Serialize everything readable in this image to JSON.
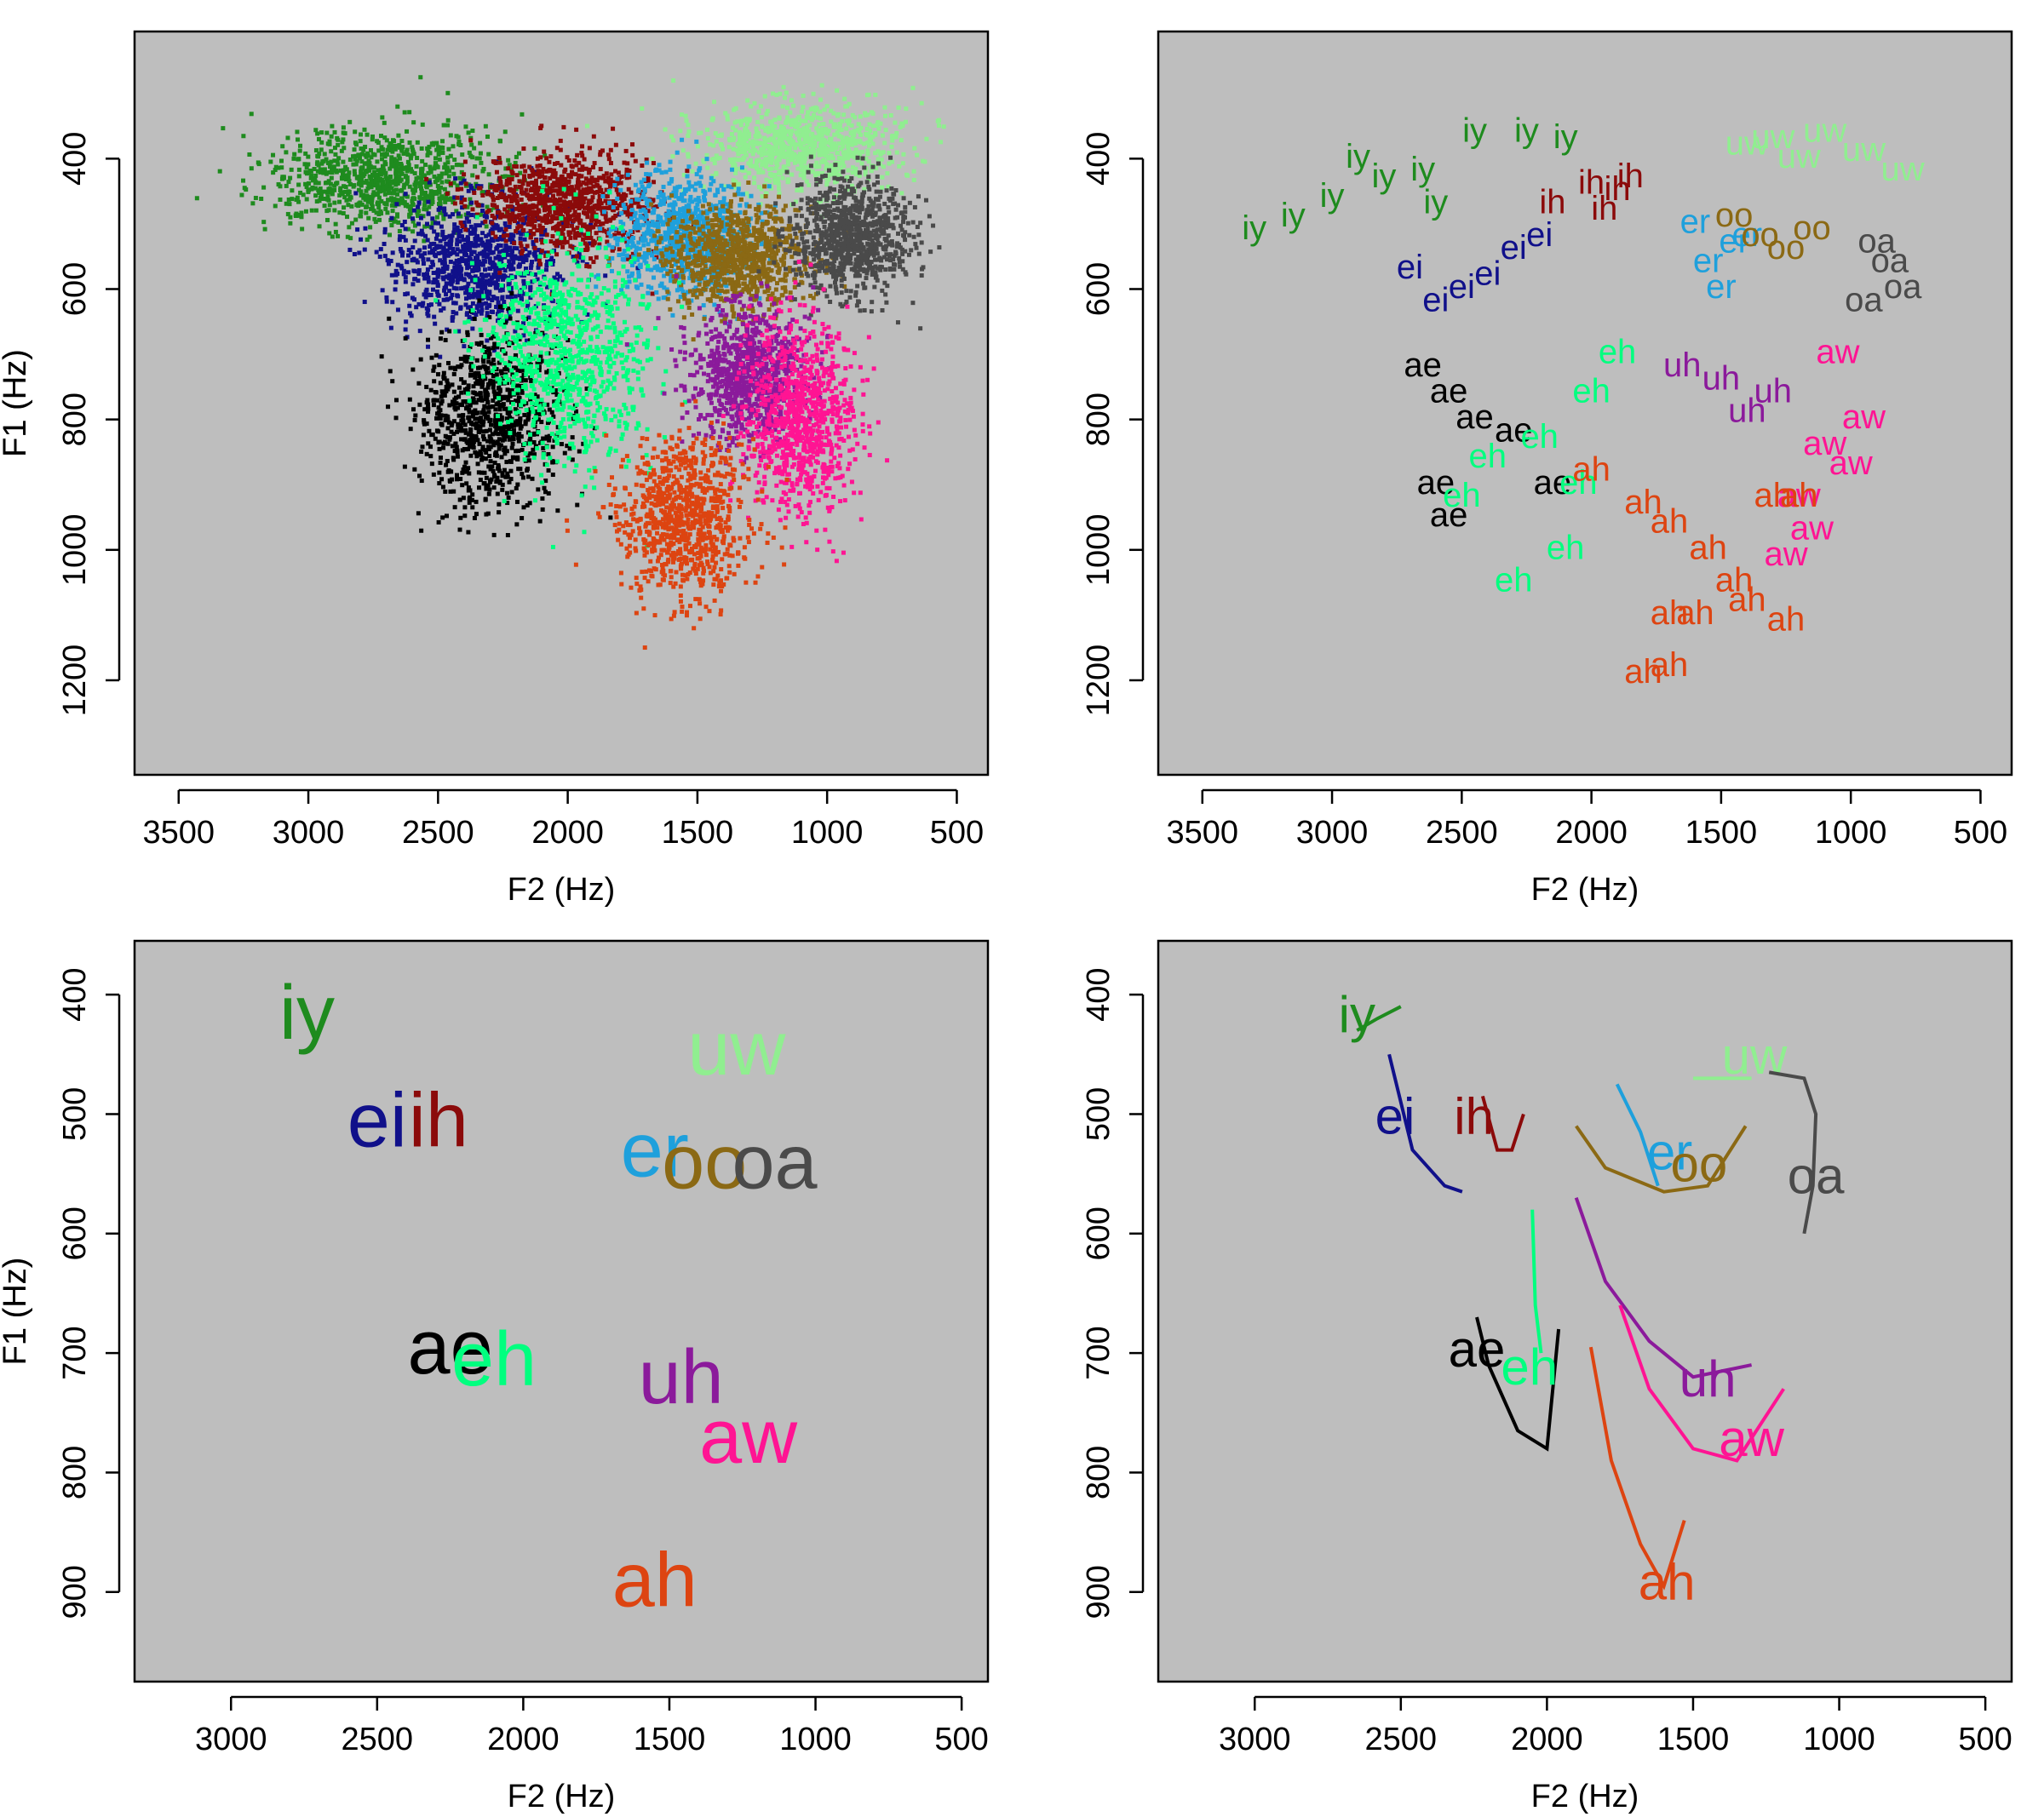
{
  "colors": {
    "iy": "#1e8b1e",
    "ei": "#10108a",
    "ih": "#8b0a0a",
    "uw": "#90ee90",
    "er": "#1ea0dc",
    "oo": "#8b6914",
    "oa": "#4a4a4a",
    "ae": "#000000",
    "eh": "#00ff7f",
    "uh": "#8b1a9b",
    "aw": "#ff1493",
    "ah": "#dd4411",
    "panel_bg": "#bebebe"
  },
  "chart_data": [
    {
      "type": "scatter",
      "xlabel": "F2 (Hz)",
      "ylabel": "F1 (Hz)",
      "x_reversed": true,
      "y_reversed": true,
      "xlim": [
        3670,
        380
      ],
      "ylim": [
        1345,
        205
      ],
      "xticks": [
        "3500",
        "3000",
        "2500",
        "2000",
        "1500",
        "1000",
        "500"
      ],
      "yticks": [
        "400",
        "600",
        "800",
        "1000",
        "1200"
      ],
      "series": [
        {
          "name": "iy",
          "center": [
            2700,
            430
          ],
          "spread": [
            420,
            70
          ]
        },
        {
          "name": "ei",
          "center": [
            2350,
            560
          ],
          "spread": [
            300,
            90
          ]
        },
        {
          "name": "ih",
          "center": [
            2000,
            470
          ],
          "spread": [
            300,
            70
          ]
        },
        {
          "name": "uw",
          "center": [
            1100,
            380
          ],
          "spread": [
            350,
            60
          ]
        },
        {
          "name": "er",
          "center": [
            1550,
            520
          ],
          "spread": [
            250,
            80
          ]
        },
        {
          "name": "oo",
          "center": [
            1350,
            550
          ],
          "spread": [
            250,
            70
          ]
        },
        {
          "name": "oa",
          "center": [
            900,
            520
          ],
          "spread": [
            200,
            80
          ]
        },
        {
          "name": "ae",
          "center": [
            2300,
            800
          ],
          "spread": [
            250,
            130
          ]
        },
        {
          "name": "eh",
          "center": [
            2000,
            700
          ],
          "spread": [
            280,
            150
          ]
        },
        {
          "name": "uh",
          "center": [
            1300,
            730
          ],
          "spread": [
            200,
            90
          ]
        },
        {
          "name": "aw",
          "center": [
            1100,
            800
          ],
          "spread": [
            200,
            130
          ]
        },
        {
          "name": "ah",
          "center": [
            1550,
            950
          ],
          "spread": [
            230,
            110
          ]
        }
      ]
    },
    {
      "type": "scatter",
      "xlabel": "F2 (Hz)",
      "ylabel": "F1 (Hz)",
      "x_reversed": true,
      "y_reversed": true,
      "xlim": [
        3670,
        380
      ],
      "ylim": [
        1345,
        205
      ],
      "xticks": [
        "3500",
        "3000",
        "2500",
        "2000",
        "1500",
        "1000",
        "500"
      ],
      "yticks": [
        "400",
        "600",
        "800",
        "1000",
        "1200"
      ],
      "labels": [
        {
          "text": "iy",
          "points": [
            [
              3300,
              510
            ],
            [
              3150,
              490
            ],
            [
              3000,
              460
            ],
            [
              2800,
              430
            ],
            [
              2650,
              420
            ],
            [
              2450,
              360
            ],
            [
              2250,
              360
            ],
            [
              2100,
              370
            ],
            [
              2900,
              400
            ],
            [
              2600,
              470
            ]
          ]
        },
        {
          "text": "ih",
          "points": [
            [
              2000,
              440
            ],
            [
              1900,
              450
            ],
            [
              1850,
              430
            ],
            [
              2150,
              470
            ],
            [
              1950,
              480
            ]
          ]
        },
        {
          "text": "ei",
          "points": [
            [
              2700,
              570
            ],
            [
              2600,
              620
            ],
            [
              2500,
              600
            ],
            [
              2400,
              580
            ],
            [
              2300,
              540
            ],
            [
              2200,
              520
            ]
          ]
        },
        {
          "text": "uw",
          "points": [
            [
              1400,
              380
            ],
            [
              1300,
              370
            ],
            [
              1100,
              360
            ],
            [
              950,
              390
            ],
            [
              800,
              420
            ],
            [
              1200,
              400
            ]
          ]
        },
        {
          "text": "er",
          "points": [
            [
              1600,
              500
            ],
            [
              1550,
              560
            ],
            [
              1500,
              600
            ],
            [
              1450,
              530
            ],
            [
              1400,
              520
            ]
          ]
        },
        {
          "text": "oo",
          "points": [
            [
              1450,
              490
            ],
            [
              1350,
              520
            ],
            [
              1250,
              540
            ],
            [
              1150,
              510
            ]
          ]
        },
        {
          "text": "oa",
          "points": [
            [
              900,
              530
            ],
            [
              850,
              560
            ],
            [
              800,
              600
            ],
            [
              950,
              620
            ]
          ]
        },
        {
          "text": "ae",
          "points": [
            [
              2650,
              720
            ],
            [
              2550,
              760
            ],
            [
              2450,
              800
            ],
            [
              2300,
              820
            ],
            [
              2600,
              900
            ],
            [
              2550,
              950
            ],
            [
              2150,
              900
            ]
          ]
        },
        {
          "text": "eh",
          "points": [
            [
              2400,
              860
            ],
            [
              2200,
              830
            ],
            [
              2000,
              760
            ],
            [
              1900,
              700
            ],
            [
              2050,
              900
            ],
            [
              2500,
              920
            ],
            [
              2100,
              1000
            ],
            [
              2300,
              1050
            ]
          ]
        },
        {
          "text": "uh",
          "points": [
            [
              1650,
              720
            ],
            [
              1500,
              740
            ],
            [
              1400,
              790
            ],
            [
              1300,
              760
            ]
          ]
        },
        {
          "text": "aw",
          "points": [
            [
              1050,
              700
            ],
            [
              950,
              800
            ],
            [
              1100,
              840
            ],
            [
              1000,
              870
            ],
            [
              1200,
              920
            ],
            [
              1150,
              970
            ],
            [
              1250,
              1010
            ]
          ]
        },
        {
          "text": "ah",
          "points": [
            [
              2000,
              880
            ],
            [
              1800,
              930
            ],
            [
              1700,
              960
            ],
            [
              1550,
              1000
            ],
            [
              1450,
              1050
            ],
            [
              1400,
              1080
            ],
            [
              1700,
              1100
            ],
            [
              1600,
              1100
            ],
            [
              1250,
              1110
            ],
            [
              1800,
              1190
            ],
            [
              1700,
              1180
            ],
            [
              1300,
              920
            ],
            [
              1200,
              920
            ]
          ]
        }
      ]
    },
    {
      "type": "scatter",
      "xlabel": "F2 (Hz)",
      "ylabel": "F1 (Hz)",
      "x_reversed": true,
      "y_reversed": true,
      "xlim": [
        3330,
        410
      ],
      "ylim": [
        975,
        355
      ],
      "xticks": [
        "3000",
        "2500",
        "2000",
        "1500",
        "1000",
        "500"
      ],
      "yticks": [
        "400",
        "500",
        "600",
        "700",
        "800",
        "900"
      ],
      "labels": [
        {
          "text": "iy",
          "x": 2740,
          "y": 420
        },
        {
          "text": "ei",
          "x": 2500,
          "y": 510
        },
        {
          "text": "ih",
          "x": 2290,
          "y": 510
        },
        {
          "text": "uw",
          "x": 1270,
          "y": 450
        },
        {
          "text": "er",
          "x": 1550,
          "y": 535
        },
        {
          "text": "oo",
          "x": 1380,
          "y": 545
        },
        {
          "text": "oa",
          "x": 1140,
          "y": 545
        },
        {
          "text": "ae",
          "x": 2250,
          "y": 700
        },
        {
          "text": "eh",
          "x": 2100,
          "y": 710
        },
        {
          "text": "uh",
          "x": 1460,
          "y": 725
        },
        {
          "text": "aw",
          "x": 1230,
          "y": 775
        },
        {
          "text": "ah",
          "x": 1550,
          "y": 895
        }
      ]
    },
    {
      "type": "line",
      "xlabel": "F2 (Hz)",
      "ylabel": "F1 (Hz)",
      "x_reversed": true,
      "y_reversed": true,
      "xlim": [
        3330,
        410
      ],
      "ylim": [
        975,
        355
      ],
      "xticks": [
        "3000",
        "2500",
        "2000",
        "1500",
        "1000",
        "500"
      ],
      "yticks": [
        "400",
        "500",
        "600",
        "700",
        "800",
        "900"
      ],
      "series": [
        {
          "name": "iy",
          "points": [
            [
              2650,
              430
            ],
            [
              2580,
              420
            ],
            [
              2500,
              410
            ]
          ],
          "label": [
            2650,
            420
          ]
        },
        {
          "name": "ei",
          "points": [
            [
              2540,
              450
            ],
            [
              2460,
              530
            ],
            [
              2350,
              560
            ],
            [
              2290,
              565
            ]
          ],
          "label": [
            2520,
            505
          ]
        },
        {
          "name": "ih",
          "points": [
            [
              2220,
              485
            ],
            [
              2170,
              530
            ],
            [
              2120,
              530
            ],
            [
              2080,
              500
            ]
          ],
          "label": [
            2250,
            505
          ]
        },
        {
          "name": "uw",
          "points": [
            [
              1500,
              470
            ],
            [
              1300,
              470
            ]
          ],
          "label": [
            1290,
            455
          ]
        },
        {
          "name": "er",
          "points": [
            [
              1760,
              475
            ],
            [
              1680,
              515
            ],
            [
              1620,
              560
            ]
          ],
          "label": [
            1580,
            535
          ]
        },
        {
          "name": "oo",
          "points": [
            [
              1900,
              510
            ],
            [
              1800,
              545
            ],
            [
              1600,
              565
            ],
            [
              1450,
              560
            ],
            [
              1320,
              510
            ]
          ],
          "label": [
            1480,
            545
          ]
        },
        {
          "name": "oa",
          "points": [
            [
              1240,
              465
            ],
            [
              1120,
              470
            ],
            [
              1080,
              500
            ],
            [
              1090,
              560
            ],
            [
              1120,
              600
            ]
          ],
          "label": [
            1080,
            555
          ]
        },
        {
          "name": "ae",
          "points": [
            [
              2240,
              670
            ],
            [
              2200,
              710
            ],
            [
              2100,
              765
            ],
            [
              2000,
              780
            ],
            [
              1960,
              680
            ]
          ],
          "label": [
            2240,
            700
          ]
        },
        {
          "name": "eh",
          "points": [
            [
              2050,
              580
            ],
            [
              2040,
              660
            ],
            [
              2020,
              700
            ]
          ],
          "label": [
            2060,
            715
          ]
        },
        {
          "name": "uh",
          "points": [
            [
              1900,
              570
            ],
            [
              1800,
              640
            ],
            [
              1650,
              690
            ],
            [
              1500,
              720
            ],
            [
              1300,
              710
            ]
          ],
          "label": [
            1450,
            725
          ]
        },
        {
          "name": "aw",
          "points": [
            [
              1750,
              660
            ],
            [
              1650,
              730
            ],
            [
              1500,
              780
            ],
            [
              1350,
              790
            ],
            [
              1190,
              730
            ]
          ],
          "label": [
            1300,
            775
          ]
        },
        {
          "name": "ah",
          "points": [
            [
              1850,
              695
            ],
            [
              1780,
              790
            ],
            [
              1680,
              860
            ],
            [
              1600,
              895
            ],
            [
              1530,
              840
            ]
          ],
          "label": [
            1590,
            895
          ]
        }
      ]
    }
  ]
}
